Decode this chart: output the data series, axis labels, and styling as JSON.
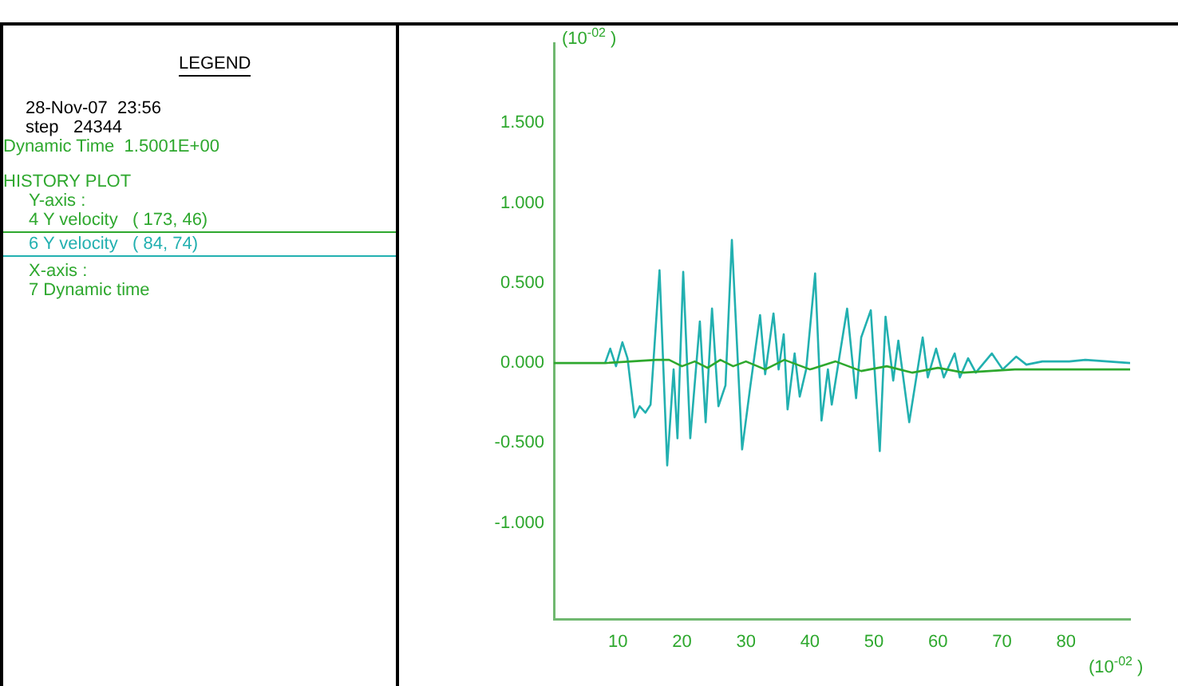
{
  "chart_data": {
    "type": "line",
    "annotations": [
      "LEGEND",
      "28-Nov-07  23:56",
      "step   24344",
      "Dynamic Time  1.5001E+00",
      "HISTORY PLOT",
      "Y-axis :",
      "X-axis :",
      "7 Dynamic time"
    ],
    "xlabel": "(10$^{-02}$ )",
    "ylabel": "(10$^{-02}$ )",
    "xlim": [
      0,
      90
    ],
    "xticks": [
      10,
      20,
      30,
      40,
      50,
      60,
      70,
      80
    ],
    "ylim": [
      -1.6,
      2.0
    ],
    "yticks": [
      {
        "value": -1,
        "label": "-1.000"
      },
      {
        "value": -0.5,
        "label": "-0.500"
      },
      {
        "value": 0,
        "label": "0.000"
      },
      {
        "value": 0.5,
        "label": "0.500"
      },
      {
        "value": 1,
        "label": "1.000"
      },
      {
        "value": 1.5,
        "label": "1.500"
      }
    ],
    "legend": "left",
    "grid": false,
    "marker": "none",
    "line_style": "solid",
    "series": [
      {
        "name": "4 Y velocity   ( 173, 46)",
        "color": "#2ea82e",
        "x": [
          0,
          8,
          16,
          18,
          20,
          22,
          24,
          26,
          28,
          30,
          33,
          36,
          40,
          44,
          48,
          52,
          56,
          60,
          64,
          68,
          72,
          80,
          90
        ],
        "values": [
          0,
          0,
          0.02,
          0.02,
          -0.02,
          0.01,
          -0.03,
          0.02,
          -0.02,
          0.01,
          -0.04,
          0.02,
          -0.04,
          0.01,
          -0.05,
          -0.02,
          -0.06,
          -0.03,
          -0.06,
          -0.05,
          -0.04,
          -0.04,
          -0.04
        ]
      },
      {
        "name": "6 Y velocity   ( 84, 74)",
        "color": "#22b0b0",
        "x": [
          8,
          8.8,
          9.7,
          10.7,
          11.5,
          12.6,
          13.4,
          14.3,
          15.1,
          16.5,
          17.7,
          18.7,
          19.3,
          20.2,
          21.3,
          22.8,
          23.7,
          24.7,
          25.7,
          26.8,
          27.8,
          29.4,
          30.7,
          32.2,
          33,
          34.3,
          35.1,
          35.9,
          36.5,
          37.6,
          38.4,
          39.4,
          40.8,
          41.8,
          42.8,
          43.4,
          45.8,
          47.2,
          48,
          49.5,
          50.9,
          51.8,
          53,
          53.8,
          55.5,
          57.6,
          58.4,
          59.7,
          60.9,
          62.6,
          63.4,
          64.7,
          65.9,
          68.4,
          70.1,
          72.2,
          73.8,
          76.3,
          80.5,
          83,
          90
        ],
        "values": [
          0,
          0.09,
          -0.02,
          0.13,
          0.03,
          -0.34,
          -0.27,
          -0.31,
          -0.26,
          0.58,
          -0.64,
          -0.04,
          -0.47,
          0.57,
          -0.47,
          0.26,
          -0.37,
          0.34,
          -0.27,
          -0.14,
          0.77,
          -0.54,
          -0.14,
          0.3,
          -0.07,
          0.31,
          -0.04,
          0.18,
          -0.29,
          0.06,
          -0.21,
          -0.04,
          0.56,
          -0.36,
          -0.04,
          -0.26,
          0.34,
          -0.22,
          0.16,
          0.33,
          -0.55,
          0.29,
          -0.11,
          0.14,
          -0.37,
          0.16,
          -0.09,
          0.09,
          -0.09,
          0.06,
          -0.09,
          0.03,
          -0.06,
          0.06,
          -0.04,
          0.04,
          -0.01,
          0.01,
          0.01,
          0.02,
          0
        ]
      }
    ]
  }
}
